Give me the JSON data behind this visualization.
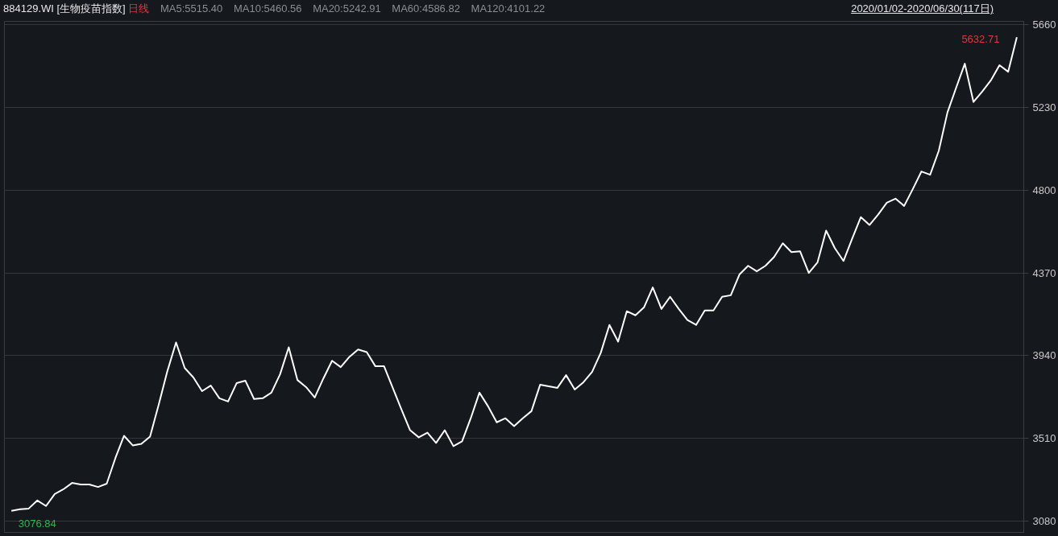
{
  "chart_data": {
    "type": "line",
    "title": "884129.WI [生物疫苗指数]",
    "annotations": [
      "日线",
      "MA5:5515.40",
      "MA10:5460.56",
      "MA20:5242.91",
      "MA60:4586.82",
      "MA120:4101.22",
      "2020/01/02-2020/06/30(117日)",
      "5632.71",
      "3076.84"
    ],
    "categories": [
      null,
      null,
      null,
      null,
      null,
      null,
      null,
      null,
      null,
      null,
      null,
      null,
      null,
      null,
      null,
      null,
      null,
      null,
      null,
      null,
      null,
      null,
      null,
      null,
      null,
      null,
      null,
      null,
      null,
      null,
      null,
      null,
      null,
      null,
      null,
      null,
      null,
      null,
      null,
      null,
      null,
      null,
      null,
      null,
      null,
      null,
      null,
      null,
      null,
      null,
      null,
      null,
      null,
      null,
      null,
      null,
      null,
      null,
      null,
      null,
      null,
      null,
      null,
      null,
      null,
      null,
      null,
      null,
      null,
      null,
      null,
      null,
      null,
      null,
      null,
      null,
      null,
      null,
      null,
      null,
      null,
      null,
      null,
      null,
      null,
      null,
      null,
      null,
      null,
      null,
      null,
      null,
      null,
      null,
      null,
      null,
      null,
      null,
      null,
      null,
      null,
      null,
      null,
      null,
      null,
      null,
      null,
      null,
      null,
      null,
      null,
      null,
      null,
      null,
      null,
      null,
      null
    ],
    "series": [
      {
        "color": "#ffffff",
        "values": [
          3134,
          3142,
          3146,
          3188,
          3159,
          3221,
          3246,
          3279,
          3271,
          3271,
          3258,
          3275,
          3408,
          3524,
          3474,
          3482,
          3520,
          3686,
          3860,
          4009,
          3876,
          3827,
          3756,
          3785,
          3719,
          3702,
          3798,
          3810,
          3715,
          3719,
          3748,
          3843,
          3984,
          3814,
          3777,
          3723,
          3822,
          3914,
          3881,
          3934,
          3972,
          3959,
          3885,
          3885,
          3773,
          3661,
          3553,
          3516,
          3540,
          3487,
          3553,
          3470,
          3495,
          3615,
          3748,
          3677,
          3594,
          3615,
          3574,
          3615,
          3652,
          3789,
          3781,
          3773,
          3839,
          3764,
          3802,
          3856,
          3955,
          4100,
          4013,
          4171,
          4150,
          4192,
          4295,
          4183,
          4246,
          4183,
          4125,
          4100,
          4175,
          4175,
          4246,
          4254,
          4362,
          4407,
          4378,
          4407,
          4453,
          4524,
          4478,
          4482,
          4370,
          4424,
          4590,
          4499,
          4432,
          4548,
          4660,
          4619,
          4673,
          4735,
          4756,
          4718,
          4806,
          4897,
          4880,
          5005,
          5204,
          5332,
          5457,
          5258,
          5312,
          5370,
          5449,
          5415,
          5594
        ]
      }
    ],
    "ylim": [
      3018,
      5677
    ],
    "yticks": [
      3080,
      3510,
      3940,
      4370,
      4800,
      5230,
      5660
    ],
    "grid": "y"
  }
}
